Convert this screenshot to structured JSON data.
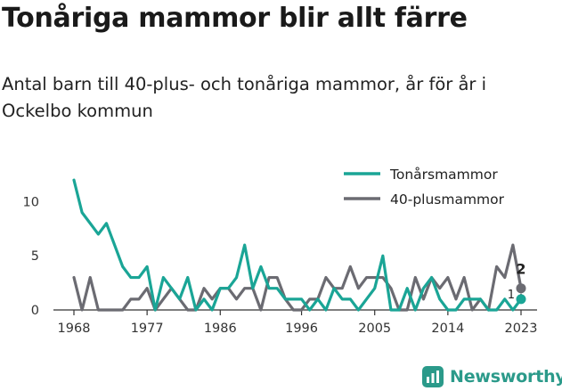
{
  "header": {
    "title": "Tonåriga mammor blir allt färre",
    "subtitle": "Antal barn till 40-plus- och tonåriga mammor, år för år i Ockelbo kommun"
  },
  "brand": {
    "name": "Newsworthy"
  },
  "colors": {
    "teal": "#1aa596",
    "grey": "#6b6b72",
    "axis": "#333333"
  },
  "chart_data": {
    "type": "line",
    "x": [
      1968,
      1969,
      1970,
      1971,
      1972,
      1973,
      1974,
      1975,
      1976,
      1977,
      1978,
      1979,
      1980,
      1981,
      1982,
      1983,
      1984,
      1985,
      1986,
      1987,
      1988,
      1989,
      1990,
      1991,
      1992,
      1993,
      1994,
      1995,
      1996,
      1997,
      1998,
      1999,
      2000,
      2001,
      2002,
      2003,
      2004,
      2005,
      2006,
      2007,
      2008,
      2009,
      2010,
      2011,
      2012,
      2013,
      2014,
      2015,
      2016,
      2017,
      2018,
      2019,
      2020,
      2021,
      2022,
      2023
    ],
    "series": [
      {
        "name": "Tonårsmammor",
        "color": "#1aa596",
        "values": [
          12,
          9,
          8,
          7,
          8,
          6,
          4,
          3,
          3,
          4,
          0,
          3,
          2,
          1,
          3,
          0,
          1,
          0,
          2,
          2,
          3,
          6,
          2,
          4,
          2,
          2,
          1,
          1,
          1,
          0,
          1,
          0,
          2,
          1,
          1,
          0,
          1,
          2,
          5,
          0,
          0,
          2,
          0,
          2,
          3,
          1,
          0,
          0,
          1,
          1,
          1,
          0,
          0,
          1,
          0,
          1
        ]
      },
      {
        "name": "40-plusmammor",
        "color": "#6b6b72",
        "values": [
          3,
          0,
          3,
          0,
          0,
          0,
          0,
          1,
          1,
          2,
          0,
          1,
          2,
          1,
          0,
          0,
          2,
          1,
          2,
          2,
          1,
          2,
          2,
          0,
          3,
          3,
          1,
          0,
          0,
          1,
          1,
          3,
          2,
          2,
          4,
          2,
          3,
          3,
          3,
          2,
          0,
          0,
          3,
          1,
          3,
          2,
          3,
          1,
          3,
          0,
          1,
          0,
          4,
          3,
          6,
          2
        ]
      }
    ],
    "xticks": [
      "1968",
      "1977",
      "1986",
      "1996",
      "2005",
      "2014",
      "2023"
    ],
    "yticks": [
      "0",
      "5",
      "10"
    ],
    "ylim": [
      0,
      13
    ],
    "xlim": [
      1968,
      2023
    ],
    "legend": "top-right",
    "end_labels": {
      "Tonårsmammor": "1",
      "40-plusmammor": "2"
    }
  }
}
